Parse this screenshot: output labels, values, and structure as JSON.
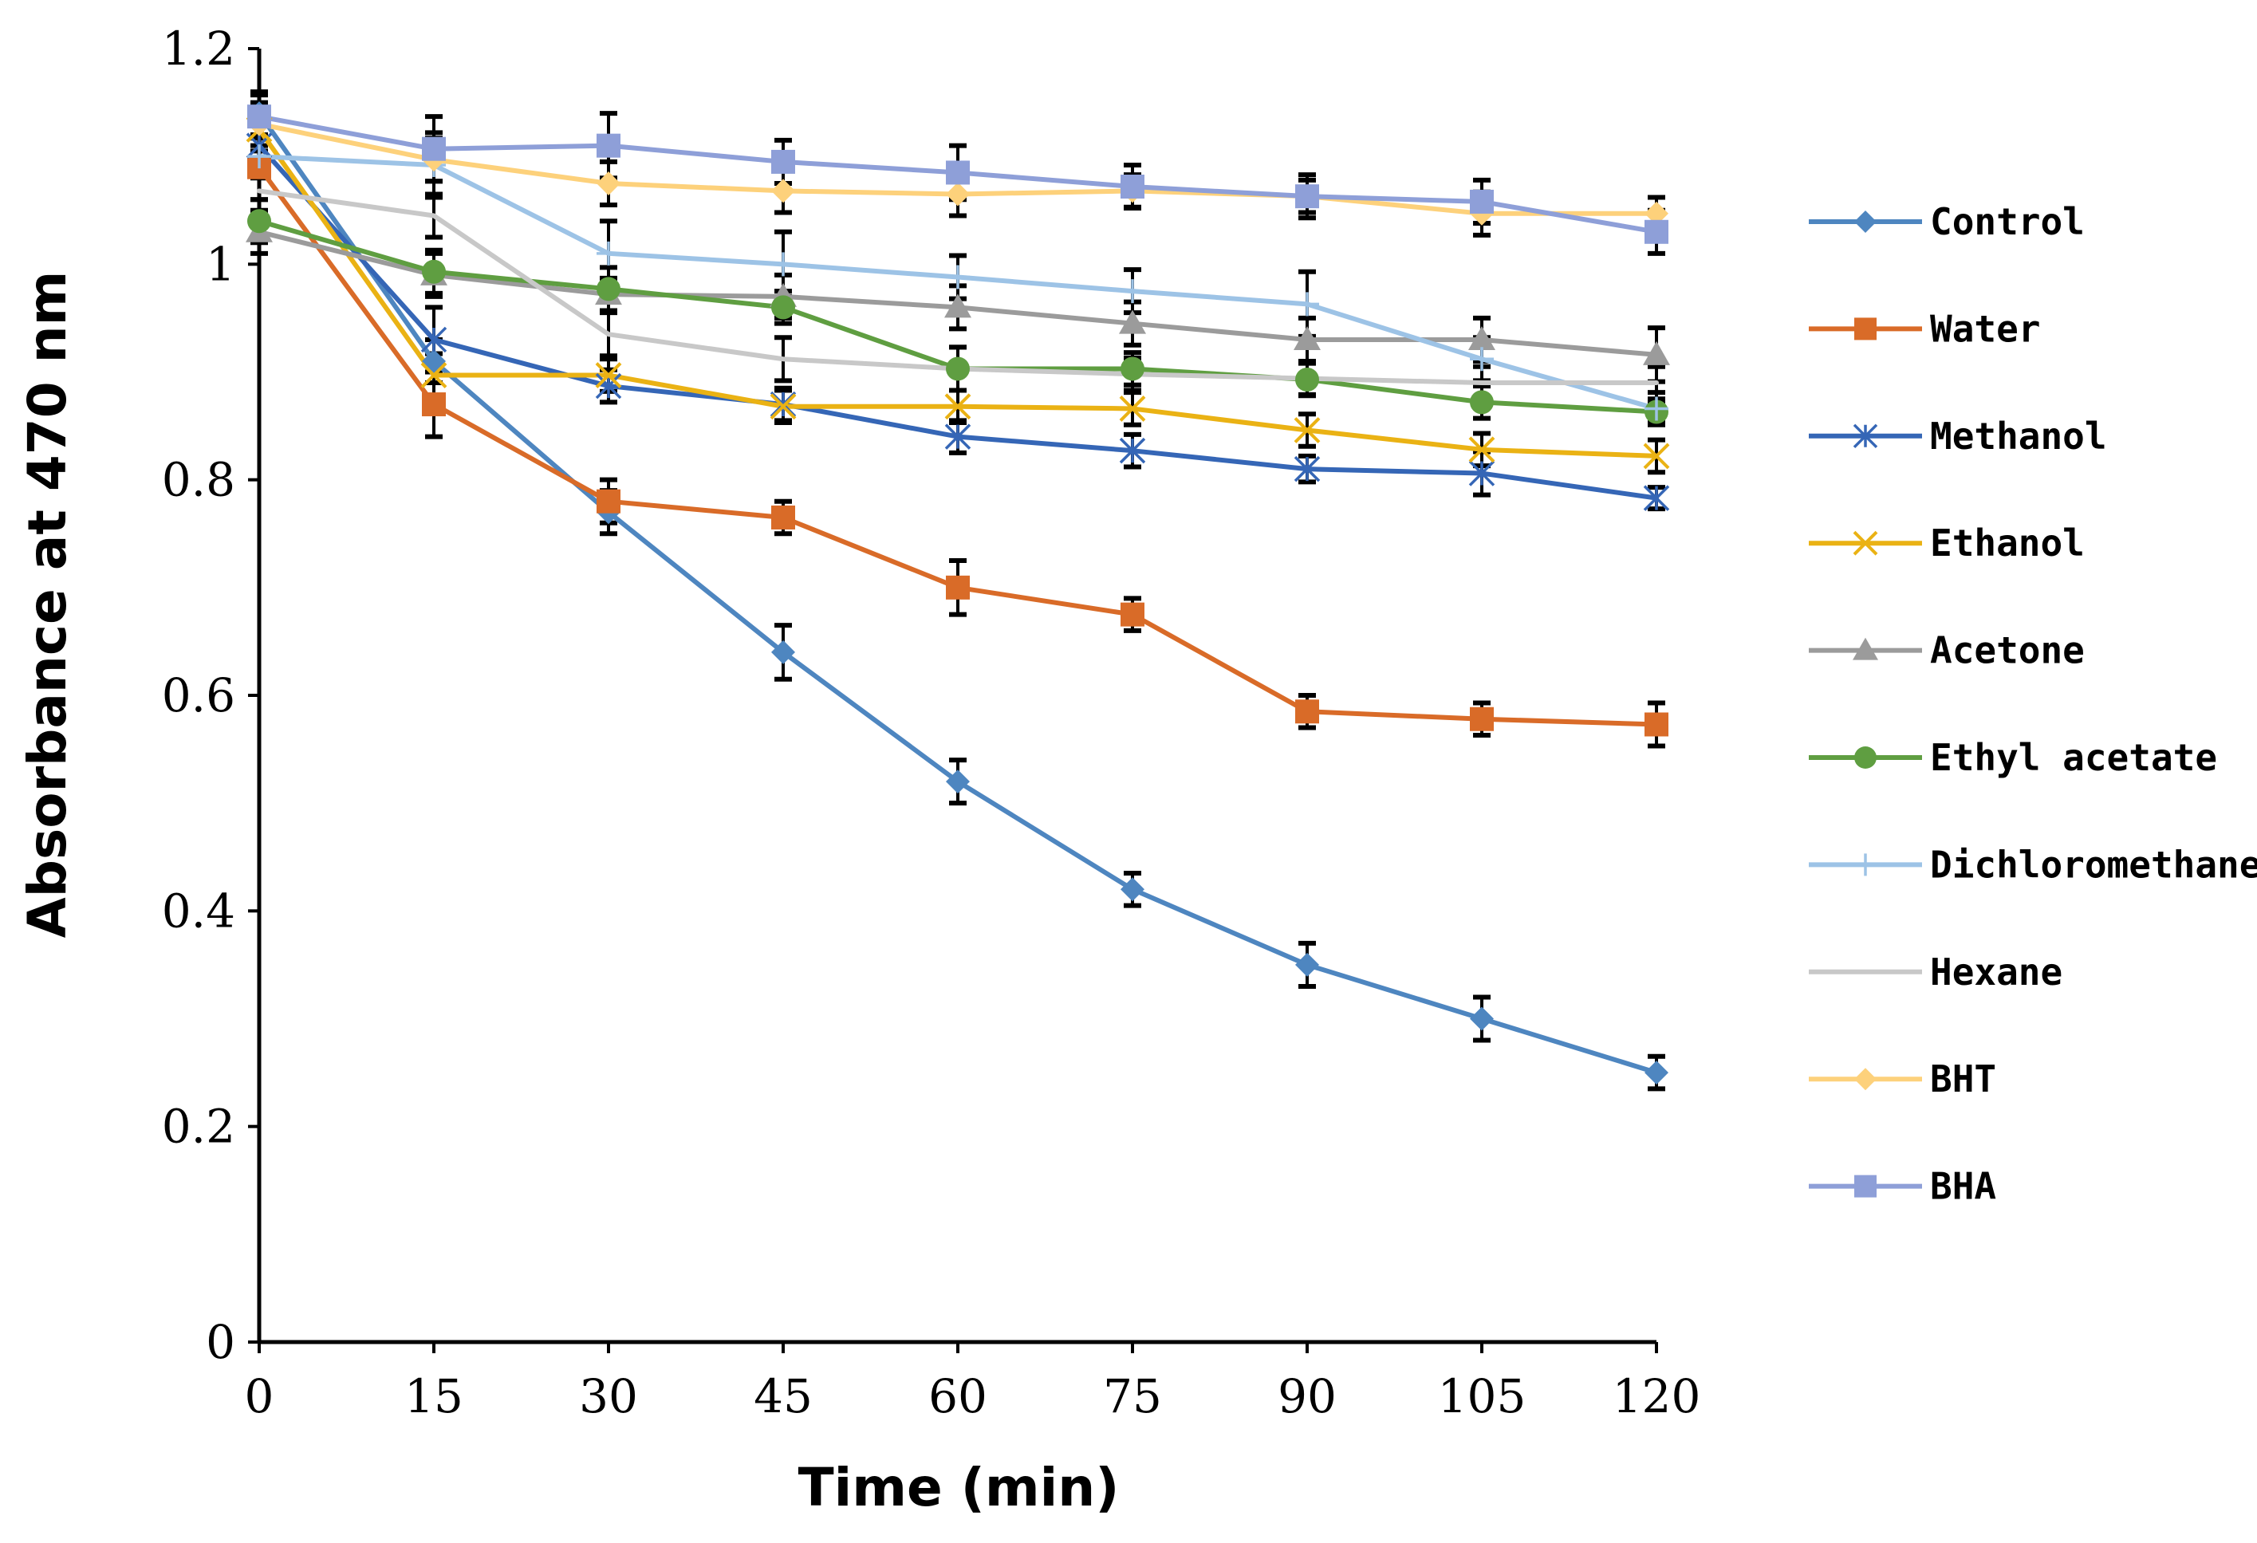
{
  "chart_data": {
    "type": "line",
    "title": "",
    "xlabel": "Time (min)",
    "ylabel": "Absorbance at 470 nm",
    "x": [
      0,
      15,
      30,
      45,
      60,
      75,
      90,
      105,
      120
    ],
    "x_tick_labels": [
      "0",
      "15",
      "30",
      "45",
      "60",
      "75",
      "90",
      "105",
      "120"
    ],
    "y_tick_labels": [
      "0",
      "0.2",
      "0.4",
      "0.6",
      "0.8",
      "1",
      "1.2"
    ],
    "y_ticks": [
      0,
      0.2,
      0.4,
      0.6,
      0.8,
      1.0,
      1.2
    ],
    "xlim": [
      0,
      120
    ],
    "ylim": [
      0,
      1.2
    ],
    "grid": false,
    "legend_position": "right",
    "series": [
      {
        "name": "Control",
        "color": "#4e86c0",
        "marker": "diamond",
        "values": [
          1.14,
          0.91,
          0.77,
          0.64,
          0.52,
          0.42,
          0.35,
          0.3,
          0.25
        ],
        "errors": [
          0.02,
          0.02,
          0.02,
          0.025,
          0.02,
          0.015,
          0.02,
          0.02,
          0.015
        ]
      },
      {
        "name": "Water",
        "color": "#d96b28",
        "marker": "square",
        "values": [
          1.09,
          0.87,
          0.78,
          0.765,
          0.7,
          0.675,
          0.585,
          0.578,
          0.573
        ],
        "errors": [
          0.03,
          0.03,
          0.02,
          0.015,
          0.025,
          0.015,
          0.015,
          0.015,
          0.02
        ]
      },
      {
        "name": "Methanol",
        "color": "#3566b6",
        "marker": "star",
        "values": [
          1.11,
          0.93,
          0.887,
          0.87,
          0.84,
          0.827,
          0.81,
          0.806,
          0.783
        ],
        "errors": [
          0.02,
          0.03,
          0.015,
          0.015,
          0.015,
          0.015,
          0.012,
          0.02,
          0.01
        ]
      },
      {
        "name": "Ethanol",
        "color": "#eab214",
        "marker": "x",
        "values": [
          1.125,
          0.897,
          0.897,
          0.868,
          0.868,
          0.866,
          0.846,
          0.828,
          0.822
        ],
        "errors": [
          0.02,
          0.02,
          0.015,
          0.015,
          0.015,
          0.015,
          0.015,
          0.015,
          0.015
        ]
      },
      {
        "name": "Acetone",
        "color": "#9b9b9b",
        "marker": "triangle",
        "values": [
          1.03,
          0.99,
          0.972,
          0.97,
          0.96,
          0.945,
          0.93,
          0.93,
          0.916
        ],
        "errors": [
          0.02,
          0.02,
          0.015,
          0.02,
          0.02,
          0.02,
          0.02,
          0.02,
          0.025
        ]
      },
      {
        "name": "Ethyl acetate",
        "color": "#5f9e41",
        "marker": "circle",
        "values": [
          1.04,
          0.993,
          0.977,
          0.96,
          0.903,
          0.903,
          0.893,
          0.872,
          0.863
        ],
        "errors": [
          0.02,
          0.02,
          0.02,
          0.015,
          0.02,
          0.015,
          0.015,
          0.015,
          0.01
        ]
      },
      {
        "name": "Dichloromethane",
        "color": "#9dc3e6",
        "marker": "plus",
        "values": [
          1.1,
          1.092,
          1.01,
          1.0,
          0.988,
          0.975,
          0.963,
          0.912,
          0.866
        ],
        "errors": [
          0.02,
          0.03,
          0.03,
          0.03,
          0.02,
          0.02,
          0.03,
          0.02,
          0.015
        ]
      },
      {
        "name": "Hexane",
        "color": "#c8c8c8",
        "marker": "none",
        "values": [
          1.068,
          1.045,
          0.935,
          0.912,
          0.903,
          0.898,
          0.894,
          0.89,
          0.89
        ],
        "errors": [
          0.02,
          0.02,
          0.02,
          0.02,
          0.02,
          0.015,
          0.015,
          0.015,
          0.015
        ]
      },
      {
        "name": "BHT",
        "color": "#fdd17b",
        "marker": "diamond",
        "values": [
          1.13,
          1.097,
          1.075,
          1.068,
          1.065,
          1.068,
          1.063,
          1.047,
          1.047
        ],
        "errors": [
          0.02,
          0.02,
          0.02,
          0.02,
          0.02,
          0.015,
          0.015,
          0.02,
          0.015
        ]
      },
      {
        "name": "BHA",
        "color": "#8e9fd8",
        "marker": "square",
        "values": [
          1.137,
          1.107,
          1.11,
          1.095,
          1.085,
          1.072,
          1.063,
          1.058,
          1.03
        ],
        "errors": [
          0.02,
          0.03,
          0.03,
          0.02,
          0.025,
          0.02,
          0.02,
          0.02,
          0.02
        ]
      }
    ]
  }
}
